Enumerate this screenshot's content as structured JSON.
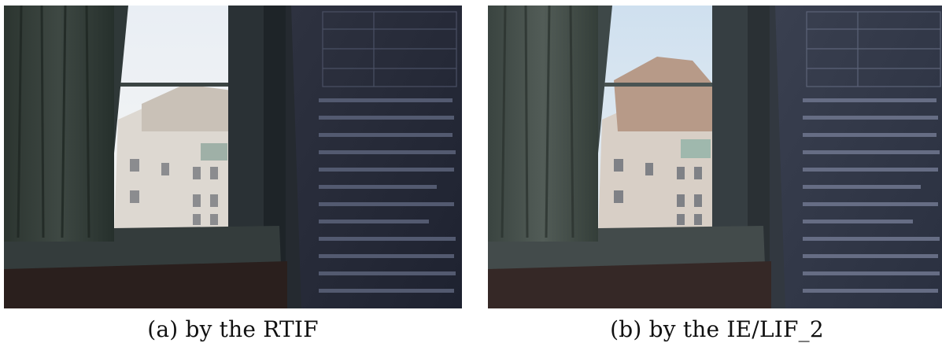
{
  "figure": {
    "panels": [
      {
        "id": "a",
        "caption": "(a) by the RTIF",
        "tone": "darker"
      },
      {
        "id": "b",
        "caption": "(b) by the IE/LIF_2",
        "tone": "brighter"
      }
    ]
  }
}
